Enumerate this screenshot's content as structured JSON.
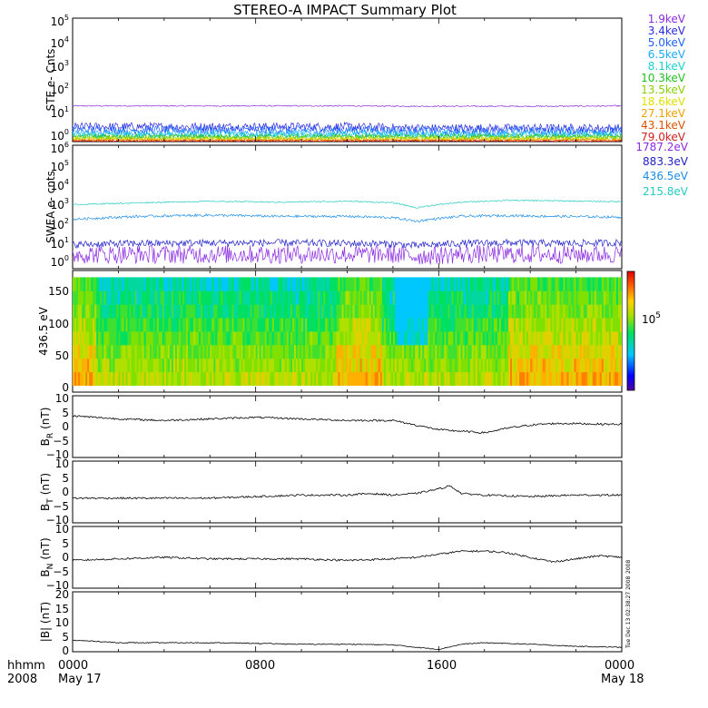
{
  "title": "STEREO-A IMPACT Summary Plot",
  "colors": {
    "ste": [
      "#8a2be2",
      "#2a2adf",
      "#1f5fff",
      "#1aa7ff",
      "#1ad0d0",
      "#20c020",
      "#8ad000",
      "#e0e000",
      "#f0a000",
      "#e05000",
      "#d02020"
    ],
    "swea": [
      "#8a2be2",
      "#2020c8",
      "#1a8ce6",
      "#22ccc0"
    ],
    "field_trace": "#000000",
    "colorbar": [
      "#5000a0",
      "#0000ff",
      "#00c8ff",
      "#00e060",
      "#a0e000",
      "#ffd000",
      "#ff6000",
      "#e00000"
    ]
  },
  "panels": {
    "ste": {
      "ylabel": "STE e- Cnts",
      "ytick_exponents": [
        "0",
        "1",
        "2",
        "3",
        "4",
        "5"
      ],
      "legend": [
        "1.9keV",
        "3.4keV",
        "5.0keV",
        "6.5keV",
        "8.1keV",
        "10.3keV",
        "13.5keV",
        "18.6keV",
        "27.1keV",
        "43.1keV",
        "79.0keV"
      ]
    },
    "swea": {
      "ylabel": "SWEA e- cnts",
      "ytick_exponents": [
        "0",
        "1",
        "2",
        "3",
        "4",
        "5",
        "6"
      ],
      "legend": [
        "1787.2eV",
        "883.3eV",
        "436.5eV",
        "215.8eV"
      ]
    },
    "pad": {
      "ylabel": "436.5 eV",
      "yticks": [
        "0",
        "50",
        "100",
        "150"
      ],
      "colorbar_label_base": "10",
      "colorbar_label_exp": "5"
    },
    "br": {
      "ylabel_main": "B",
      "ylabel_sub": "R",
      "ylabel_unit": "(nT)",
      "yticks": [
        "10",
        "5",
        "0",
        "−5",
        "−10"
      ]
    },
    "bt": {
      "ylabel_main": "B",
      "ylabel_sub": "T",
      "ylabel_unit": "(nT)",
      "yticks": [
        "10",
        "5",
        "0",
        "−5",
        "−10"
      ]
    },
    "bn": {
      "ylabel_main": "B",
      "ylabel_sub": "N",
      "ylabel_unit": "(nT)",
      "yticks": [
        "10",
        "5",
        "0",
        "−5",
        "−10"
      ],
      "side_note": "2008"
    },
    "bmag": {
      "ylabel": "|B| (nT)",
      "yticks": [
        "20",
        "15",
        "10",
        "5",
        "0"
      ],
      "side_note": "Tue Dec 13 02:38:27 2008"
    }
  },
  "xaxis": {
    "row1_label": "hhmm",
    "row2_label": "2008",
    "ticks": [
      "0000",
      "0800",
      "1600",
      "0000"
    ],
    "dates": [
      "May 17",
      "May 18"
    ]
  },
  "chart_data": [
    {
      "type": "line",
      "title": "STEREO-A IMPACT Summary Plot",
      "ylabel": "STE e- Cnts",
      "yscale": "log",
      "ylim": [
        1,
        100000
      ],
      "x_hours": [
        0,
        3,
        6,
        9,
        12,
        15,
        18,
        21,
        24
      ],
      "series": [
        {
          "name": "1.9keV",
          "values": [
            28,
            28,
            28,
            28,
            28,
            27,
            27,
            27,
            28
          ]
        },
        {
          "name": "3.4keV",
          "values": [
            4,
            4,
            4,
            4,
            4,
            3.5,
            3.5,
            3.5,
            3.5
          ]
        },
        {
          "name": "5.0keV",
          "values": [
            3,
            3,
            3,
            3,
            3,
            2.8,
            2.8,
            2.8,
            2.8
          ]
        },
        {
          "name": "6.5keV",
          "values": [
            2.2,
            2.2,
            2.2,
            2.2,
            2.2,
            2.1,
            2.1,
            2.1,
            2.1
          ]
        },
        {
          "name": "8.1keV",
          "values": [
            1.8,
            1.8,
            1.8,
            1.8,
            1.8,
            1.8,
            1.8,
            1.8,
            1.8
          ]
        },
        {
          "name": "10.3keV",
          "values": [
            1.6,
            1.6,
            1.6,
            1.6,
            1.6,
            1.6,
            1.6,
            1.6,
            1.6
          ]
        },
        {
          "name": "13.5keV",
          "values": [
            1.4,
            1.4,
            1.4,
            1.4,
            1.4,
            1.4,
            1.4,
            1.4,
            1.4
          ]
        },
        {
          "name": "18.6keV",
          "values": [
            1.3,
            1.3,
            1.3,
            1.3,
            1.3,
            1.3,
            1.3,
            1.3,
            1.3
          ]
        },
        {
          "name": "27.1keV",
          "values": [
            1.2,
            1.2,
            1.2,
            1.2,
            1.2,
            1.2,
            1.2,
            1.2,
            1.2
          ]
        },
        {
          "name": "43.1keV",
          "values": [
            1.1,
            1.1,
            1.1,
            1.1,
            1.1,
            1.1,
            1.1,
            1.1,
            1.1
          ]
        },
        {
          "name": "79.0keV",
          "values": [
            1.05,
            1.05,
            1.05,
            1.05,
            1.05,
            1.05,
            1.05,
            1.05,
            1.05
          ]
        }
      ]
    },
    {
      "type": "line",
      "ylabel": "SWEA e- cnts",
      "yscale": "log",
      "ylim": [
        1,
        1000000
      ],
      "x_hours": [
        0,
        3,
        6,
        9,
        12,
        14,
        15,
        17,
        19,
        21,
        24
      ],
      "series": [
        {
          "name": "1787.2eV",
          "values": [
            5,
            5,
            5,
            5,
            5,
            5,
            4,
            5,
            5,
            5,
            5
          ]
        },
        {
          "name": "883.3eV",
          "values": [
            15,
            17,
            18,
            18,
            17,
            16,
            13,
            17,
            18,
            17,
            18
          ]
        },
        {
          "name": "436.5eV",
          "values": [
            250,
            350,
            400,
            350,
            350,
            300,
            200,
            350,
            380,
            350,
            320
          ]
        },
        {
          "name": "215.8eV",
          "values": [
            1300,
            1600,
            1900,
            1700,
            1900,
            1600,
            900,
            1700,
            2100,
            2000,
            1800
          ]
        }
      ]
    },
    {
      "type": "heatmap",
      "ylabel": "436.5 eV",
      "ylim": [
        0,
        180
      ],
      "y_range": [
        10,
        170
      ],
      "colorbar_label": "10^5"
    },
    {
      "type": "line",
      "ylabel": "B_R (nT)",
      "ylim": [
        -10,
        10
      ],
      "x_hours": [
        0,
        1,
        2,
        4,
        6,
        8,
        10,
        12,
        14,
        15,
        16,
        17,
        18,
        19,
        20,
        21,
        22,
        23,
        24
      ],
      "values": [
        3.5,
        3,
        2.5,
        2,
        2.5,
        3,
        2.5,
        2,
        2,
        0.5,
        -1,
        -1.5,
        -2,
        -0.5,
        0.5,
        1,
        1,
        0.8,
        0.8
      ]
    },
    {
      "type": "line",
      "ylabel": "B_T (nT)",
      "ylim": [
        -10,
        10
      ],
      "x_hours": [
        0,
        2,
        4,
        6,
        8,
        10,
        12,
        13,
        14,
        15,
        16,
        16.5,
        17,
        18,
        20,
        22,
        24
      ],
      "values": [
        -2,
        -2,
        -2,
        -2,
        -1.5,
        -1,
        -1,
        -0.5,
        -1,
        -0.5,
        1,
        2,
        -0.5,
        -1,
        -1.5,
        -1,
        -1
      ]
    },
    {
      "type": "line",
      "ylabel": "B_N (nT)",
      "ylim": [
        -10,
        10
      ],
      "x_hours": [
        0,
        2,
        4,
        6,
        8,
        10,
        12,
        14,
        15,
        16,
        17,
        18,
        19,
        20,
        21,
        22,
        23,
        24
      ],
      "values": [
        -1,
        -0.5,
        0,
        -0.5,
        -0.5,
        -0.5,
        -1,
        -0.5,
        0,
        1,
        2,
        2,
        1.5,
        0,
        -1.5,
        -0.5,
        0.5,
        0
      ]
    },
    {
      "type": "line",
      "ylabel": "|B| (nT)",
      "ylim": [
        0,
        20
      ],
      "x_hours": [
        0,
        1,
        2,
        4,
        6,
        8,
        10,
        12,
        14,
        15,
        16,
        17,
        18,
        20,
        22,
        24
      ],
      "values": [
        3.8,
        3.5,
        3,
        3,
        3,
        2.8,
        2.5,
        2.5,
        2.3,
        1.5,
        0.8,
        2.5,
        3,
        2.5,
        1.8,
        1.5
      ]
    }
  ]
}
